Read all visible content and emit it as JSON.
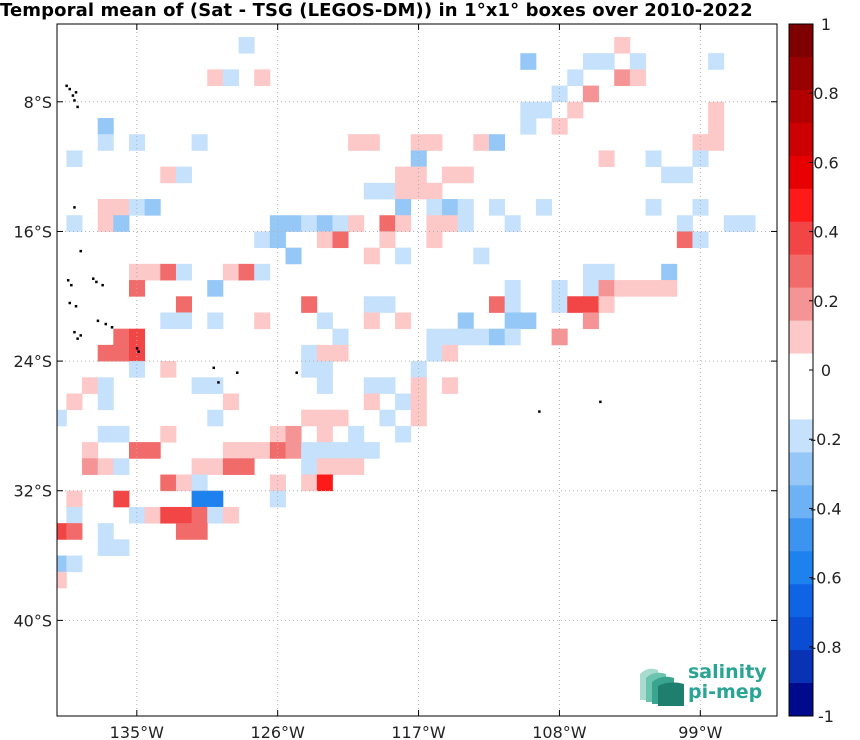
{
  "title": "Temporal mean of (Sat - TSG (LEGOS-DM)) in 1°x1° boxes over 2010-2022",
  "logo": {
    "line1": "salinity",
    "line2": "pi-mep"
  },
  "chart_data": {
    "type": "heatmap",
    "title": "Temporal mean of (Sat - TSG (LEGOS-DM)) in 1°x1° boxes over 2010-2022",
    "x_ticks": [
      {
        "value": -135,
        "label": "135°W"
      },
      {
        "value": -126,
        "label": "126°W"
      },
      {
        "value": -117,
        "label": "117°W"
      },
      {
        "value": -108,
        "label": "108°W"
      },
      {
        "value": -99,
        "label": "99°W"
      }
    ],
    "y_ticks": [
      {
        "value": -8,
        "label": "8°S"
      },
      {
        "value": -16,
        "label": "16°S"
      },
      {
        "value": -24,
        "label": "24°S"
      },
      {
        "value": -32,
        "label": "32°S"
      },
      {
        "value": -40,
        "label": "40°S"
      }
    ],
    "xlim": [
      -140.1,
      -94.1
    ],
    "ylim": [
      -45.9,
      -3.2
    ],
    "grid": true,
    "colorbar": {
      "min": -1,
      "max": 1,
      "step": 0.1,
      "tick_labels": [
        "1",
        "0.8",
        "0.6",
        "0.4",
        "0.2",
        "0",
        "-0.2",
        "-0.4",
        "-0.6",
        "-0.8",
        "-1"
      ],
      "colors": [
        "#7f0000",
        "#990000",
        "#b20000",
        "#cc0000",
        "#e60000",
        "#ff1a1a",
        "#f24646",
        "#f26b6b",
        "#f59494",
        "#fcc8c8",
        "#ffffff",
        "#ffffff",
        "#c6e1fb",
        "#96c8f7",
        "#6cb2f5",
        "#3c94f0",
        "#1e82ee",
        "#0f64e6",
        "#0a4cd2",
        "#0a32b4",
        "#000a8c"
      ]
    },
    "cells": [
      [
        -128,
        -4.5,
        "#c6e1fb"
      ],
      [
        -110,
        -5.5,
        "#96c8f7"
      ],
      [
        -104,
        -4.5,
        "#fcc8c8"
      ],
      [
        -106,
        -5.5,
        "#c6e1fb"
      ],
      [
        -105,
        -5.5,
        "#c6e1fb"
      ],
      [
        -103,
        -5.5,
        "#c6e1fb"
      ],
      [
        -98,
        -5.5,
        "#c6e1fb"
      ],
      [
        -107,
        -6.5,
        "#c6e1fb"
      ],
      [
        -104,
        -6.5,
        "#f59494"
      ],
      [
        -103,
        -6.5,
        "#fcc8c8"
      ],
      [
        -130,
        -6.5,
        "#fcc8c8"
      ],
      [
        -129,
        -6.5,
        "#c6e1fb"
      ],
      [
        -127,
        -6.5,
        "#fcc8c8"
      ],
      [
        -108,
        -7.5,
        "#c6e1fb"
      ],
      [
        -106,
        -7.5,
        "#f59494"
      ],
      [
        -109,
        -8.5,
        "#c6e1fb"
      ],
      [
        -110,
        -8.5,
        "#c6e1fb"
      ],
      [
        -107,
        -8.5,
        "#fcc8c8"
      ],
      [
        -98,
        -8.5,
        "#fcc8c8"
      ],
      [
        -137,
        -9.5,
        "#96c8f7"
      ],
      [
        -110,
        -9.5,
        "#c6e1fb"
      ],
      [
        -108,
        -9.5,
        "#fcc8c8"
      ],
      [
        -98,
        -9.5,
        "#fcc8c8"
      ],
      [
        -137,
        -10.5,
        "#c6e1fb"
      ],
      [
        -135,
        -10.5,
        "#c6e1fb"
      ],
      [
        -131,
        -10.5,
        "#c6e1fb"
      ],
      [
        -121,
        -10.5,
        "#fcc8c8"
      ],
      [
        -120,
        -10.5,
        "#fcc8c8"
      ],
      [
        -117,
        -10.5,
        "#fcc8c8"
      ],
      [
        -116,
        -10.5,
        "#fcc8c8"
      ],
      [
        -113,
        -10.5,
        "#fcc8c8"
      ],
      [
        -112,
        -10.5,
        "#96c8f7"
      ],
      [
        -99,
        -10.5,
        "#fcc8c8"
      ],
      [
        -98,
        -10.5,
        "#fcc8c8"
      ],
      [
        -139,
        -11.5,
        "#c6e1fb"
      ],
      [
        -117,
        -11.5,
        "#96c8f7"
      ],
      [
        -105,
        -11.5,
        "#fcc8c8"
      ],
      [
        -102,
        -11.5,
        "#c6e1fb"
      ],
      [
        -99,
        -11.5,
        "#c6e1fb"
      ],
      [
        -133,
        -12.5,
        "#fcc8c8"
      ],
      [
        -132,
        -12.5,
        "#c6e1fb"
      ],
      [
        -118,
        -12.5,
        "#fcc8c8"
      ],
      [
        -117,
        -12.5,
        "#fcc8c8"
      ],
      [
        -115,
        -12.5,
        "#fcc8c8"
      ],
      [
        -114,
        -12.5,
        "#fcc8c8"
      ],
      [
        -101,
        -12.5,
        "#c6e1fb"
      ],
      [
        -100,
        -12.5,
        "#c6e1fb"
      ],
      [
        -120,
        -13.5,
        "#c6e1fb"
      ],
      [
        -119,
        -13.5,
        "#c6e1fb"
      ],
      [
        -118,
        -13.5,
        "#fcc8c8"
      ],
      [
        -117,
        -13.5,
        "#fcc8c8"
      ],
      [
        -116,
        -13.5,
        "#fcc8c8"
      ],
      [
        -137,
        -14.5,
        "#fcc8c8"
      ],
      [
        -136,
        -14.5,
        "#fcc8c8"
      ],
      [
        -135,
        -14.5,
        "#c6e1fb"
      ],
      [
        -134,
        -14.5,
        "#96c8f7"
      ],
      [
        -118,
        -14.5,
        "#96c8f7"
      ],
      [
        -116,
        -14.5,
        "#c6e1fb"
      ],
      [
        -115,
        -14.5,
        "#96c8f7"
      ],
      [
        -114,
        -14.5,
        "#c6e1fb"
      ],
      [
        -112,
        -14.5,
        "#c6e1fb"
      ],
      [
        -109,
        -14.5,
        "#c6e1fb"
      ],
      [
        -102,
        -14.5,
        "#c6e1fb"
      ],
      [
        -99,
        -14.5,
        "#c6e1fb"
      ],
      [
        -139,
        -15.5,
        "#c6e1fb"
      ],
      [
        -137,
        -15.5,
        "#fcc8c8"
      ],
      [
        -136,
        -15.5,
        "#96c8f7"
      ],
      [
        -126,
        -15.5,
        "#96c8f7"
      ],
      [
        -125,
        -15.5,
        "#96c8f7"
      ],
      [
        -124,
        -15.5,
        "#c6e1fb"
      ],
      [
        -123,
        -15.5,
        "#96c8f7"
      ],
      [
        -122,
        -15.5,
        "#c6e1fb"
      ],
      [
        -121,
        -15.5,
        "#fcc8c8"
      ],
      [
        -119,
        -15.5,
        "#f26b6b"
      ],
      [
        -118,
        -15.5,
        "#fcc8c8"
      ],
      [
        -116,
        -15.5,
        "#fcc8c8"
      ],
      [
        -115,
        -15.5,
        "#fcc8c8"
      ],
      [
        -114,
        -15.5,
        "#c6e1fb"
      ],
      [
        -111,
        -15.5,
        "#c6e1fb"
      ],
      [
        -100,
        -15.5,
        "#c6e1fb"
      ],
      [
        -97,
        -15.5,
        "#c6e1fb"
      ],
      [
        -96,
        -15.5,
        "#c6e1fb"
      ],
      [
        -127,
        -16.5,
        "#c6e1fb"
      ],
      [
        -126,
        -16.5,
        "#96c8f7"
      ],
      [
        -123,
        -16.5,
        "#fcc8c8"
      ],
      [
        -122,
        -16.5,
        "#f26b6b"
      ],
      [
        -119,
        -16.5,
        "#fcc8c8"
      ],
      [
        -116,
        -16.5,
        "#fcc8c8"
      ],
      [
        -100,
        -16.5,
        "#f26b6b"
      ],
      [
        -99,
        -16.5,
        "#c6e1fb"
      ],
      [
        -125,
        -17.5,
        "#96c8f7"
      ],
      [
        -120,
        -17.5,
        "#fcc8c8"
      ],
      [
        -118,
        -17.5,
        "#c6e1fb"
      ],
      [
        -113,
        -17.5,
        "#c6e1fb"
      ],
      [
        -135,
        -18.5,
        "#fcc8c8"
      ],
      [
        -134,
        -18.5,
        "#fcc8c8"
      ],
      [
        -133,
        -18.5,
        "#f26b6b"
      ],
      [
        -132,
        -18.5,
        "#c6e1fb"
      ],
      [
        -129,
        -18.5,
        "#fcc8c8"
      ],
      [
        -128,
        -18.5,
        "#f26b6b"
      ],
      [
        -127,
        -18.5,
        "#c6e1fb"
      ],
      [
        -106,
        -18.5,
        "#c6e1fb"
      ],
      [
        -105,
        -18.5,
        "#c6e1fb"
      ],
      [
        -101,
        -18.5,
        "#96c8f7"
      ],
      [
        -130,
        -19.5,
        "#96c8f7"
      ],
      [
        -135,
        -19.5,
        "#f26b6b"
      ],
      [
        -111,
        -19.5,
        "#c6e1fb"
      ],
      [
        -108,
        -19.5,
        "#c6e1fb"
      ],
      [
        -106,
        -19.5,
        "#c6e1fb"
      ],
      [
        -105,
        -19.5,
        "#f59494"
      ],
      [
        -104,
        -19.5,
        "#fcc8c8"
      ],
      [
        -103,
        -19.5,
        "#fcc8c8"
      ],
      [
        -102,
        -19.5,
        "#fcc8c8"
      ],
      [
        -101,
        -19.5,
        "#fcc8c8"
      ],
      [
        -132,
        -20.5,
        "#f26b6b"
      ],
      [
        -124,
        -20.5,
        "#f26b6b"
      ],
      [
        -120,
        -20.5,
        "#c6e1fb"
      ],
      [
        -119,
        -20.5,
        "#c6e1fb"
      ],
      [
        -112,
        -20.5,
        "#f26b6b"
      ],
      [
        -111,
        -20.5,
        "#c6e1fb"
      ],
      [
        -108,
        -20.5,
        "#c6e1fb"
      ],
      [
        -107,
        -20.5,
        "#f24646"
      ],
      [
        -106,
        -20.5,
        "#f24646"
      ],
      [
        -105,
        -20.5,
        "#fcc8c8"
      ],
      [
        -133,
        -21.5,
        "#c6e1fb"
      ],
      [
        -132,
        -21.5,
        "#c6e1fb"
      ],
      [
        -130,
        -21.5,
        "#c6e1fb"
      ],
      [
        -127,
        -21.5,
        "#fcc8c8"
      ],
      [
        -123,
        -21.5,
        "#c6e1fb"
      ],
      [
        -120,
        -21.5,
        "#fcc8c8"
      ],
      [
        -118,
        -21.5,
        "#fcc8c8"
      ],
      [
        -114,
        -21.5,
        "#96c8f7"
      ],
      [
        -111,
        -21.5,
        "#96c8f7"
      ],
      [
        -110,
        -21.5,
        "#96c8f7"
      ],
      [
        -106,
        -21.5,
        "#f59494"
      ],
      [
        -136,
        -22.5,
        "#f26b6b"
      ],
      [
        -135,
        -22.5,
        "#f24646"
      ],
      [
        -122,
        -22.5,
        "#c6e1fb"
      ],
      [
        -116,
        -22.5,
        "#c6e1fb"
      ],
      [
        -115,
        -22.5,
        "#c6e1fb"
      ],
      [
        -114,
        -22.5,
        "#c6e1fb"
      ],
      [
        -113,
        -22.5,
        "#c6e1fb"
      ],
      [
        -112,
        -22.5,
        "#96c8f7"
      ],
      [
        -111,
        -22.5,
        "#c6e1fb"
      ],
      [
        -108,
        -22.5,
        "#f59494"
      ],
      [
        -137,
        -23.5,
        "#f26b6b"
      ],
      [
        -136,
        -23.5,
        "#f26b6b"
      ],
      [
        -135,
        -23.5,
        "#f24646"
      ],
      [
        -124,
        -23.5,
        "#c6e1fb"
      ],
      [
        -123,
        -23.5,
        "#fcc8c8"
      ],
      [
        -122,
        -23.5,
        "#fcc8c8"
      ],
      [
        -116,
        -23.5,
        "#c6e1fb"
      ],
      [
        -115,
        -23.5,
        "#fcc8c8"
      ],
      [
        -135,
        -24.5,
        "#c6e1fb"
      ],
      [
        -133,
        -24.5,
        "#fcc8c8"
      ],
      [
        -124,
        -24.5,
        "#c6e1fb"
      ],
      [
        -123,
        -24.5,
        "#c6e1fb"
      ],
      [
        -117,
        -24.5,
        "#c6e1fb"
      ],
      [
        -138,
        -25.5,
        "#fcc8c8"
      ],
      [
        -137,
        -25.5,
        "#c6e1fb"
      ],
      [
        -131,
        -25.5,
        "#c6e1fb"
      ],
      [
        -130,
        -25.5,
        "#c6e1fb"
      ],
      [
        -123,
        -25.5,
        "#c6e1fb"
      ],
      [
        -120,
        -25.5,
        "#c6e1fb"
      ],
      [
        -119,
        -25.5,
        "#c6e1fb"
      ],
      [
        -117,
        -25.5,
        "#fcc8c8"
      ],
      [
        -115,
        -25.5,
        "#fcc8c8"
      ],
      [
        -139,
        -26.5,
        "#fcc8c8"
      ],
      [
        -137,
        -26.5,
        "#c6e1fb"
      ],
      [
        -129,
        -26.5,
        "#fcc8c8"
      ],
      [
        -120,
        -26.5,
        "#fcc8c8"
      ],
      [
        -118,
        -26.5,
        "#c6e1fb"
      ],
      [
        -117,
        -26.5,
        "#fcc8c8"
      ],
      [
        -140,
        -27.5,
        "#c6e1fb"
      ],
      [
        -130,
        -27.5,
        "#c6e1fb"
      ],
      [
        -124,
        -27.5,
        "#fcc8c8"
      ],
      [
        -123,
        -27.5,
        "#fcc8c8"
      ],
      [
        -122,
        -27.5,
        "#fcc8c8"
      ],
      [
        -119,
        -27.5,
        "#c6e1fb"
      ],
      [
        -117,
        -27.5,
        "#fcc8c8"
      ],
      [
        -137,
        -28.5,
        "#c6e1fb"
      ],
      [
        -136,
        -28.5,
        "#c6e1fb"
      ],
      [
        -133,
        -28.5,
        "#fcc8c8"
      ],
      [
        -126,
        -28.5,
        "#fcc8c8"
      ],
      [
        -125,
        -28.5,
        "#f59494"
      ],
      [
        -123,
        -28.5,
        "#fcc8c8"
      ],
      [
        -121,
        -28.5,
        "#c6e1fb"
      ],
      [
        -118,
        -28.5,
        "#c6e1fb"
      ],
      [
        -138,
        -29.5,
        "#fcc8c8"
      ],
      [
        -135,
        -29.5,
        "#f26b6b"
      ],
      [
        -134,
        -29.5,
        "#f26b6b"
      ],
      [
        -129,
        -29.5,
        "#fcc8c8"
      ],
      [
        -128,
        -29.5,
        "#fcc8c8"
      ],
      [
        -127,
        -29.5,
        "#fcc8c8"
      ],
      [
        -126,
        -29.5,
        "#f26b6b"
      ],
      [
        -125,
        -29.5,
        "#f59494"
      ],
      [
        -124,
        -29.5,
        "#c6e1fb"
      ],
      [
        -123,
        -29.5,
        "#c6e1fb"
      ],
      [
        -122,
        -29.5,
        "#c6e1fb"
      ],
      [
        -121,
        -29.5,
        "#c6e1fb"
      ],
      [
        -120,
        -29.5,
        "#c6e1fb"
      ],
      [
        -138,
        -30.5,
        "#f59494"
      ],
      [
        -137,
        -30.5,
        "#fcc8c8"
      ],
      [
        -136,
        -30.5,
        "#c6e1fb"
      ],
      [
        -131,
        -30.5,
        "#fcc8c8"
      ],
      [
        -130,
        -30.5,
        "#fcc8c8"
      ],
      [
        -129,
        -30.5,
        "#f26b6b"
      ],
      [
        -128,
        -30.5,
        "#f26b6b"
      ],
      [
        -124,
        -30.5,
        "#c6e1fb"
      ],
      [
        -123,
        -30.5,
        "#fcc8c8"
      ],
      [
        -122,
        -30.5,
        "#fcc8c8"
      ],
      [
        -121,
        -30.5,
        "#fcc8c8"
      ],
      [
        -133,
        -31.5,
        "#f26b6b"
      ],
      [
        -132,
        -31.5,
        "#fcc8c8"
      ],
      [
        -131,
        -31.5,
        "#c6e1fb"
      ],
      [
        -124,
        -31.5,
        "#fcc8c8"
      ],
      [
        -123,
        -31.5,
        "#ff1a1a"
      ],
      [
        -126,
        -31.5,
        "#fcc8c8"
      ],
      [
        -139,
        -32.5,
        "#fcc8c8"
      ],
      [
        -136,
        -32.5,
        "#f24646"
      ],
      [
        -131,
        -32.5,
        "#1e82ee"
      ],
      [
        -130,
        -32.5,
        "#1e82ee"
      ],
      [
        -126,
        -32.5,
        "#c6e1fb"
      ],
      [
        -139,
        -33.5,
        "#c6e1fb"
      ],
      [
        -135,
        -33.5,
        "#c6e1fb"
      ],
      [
        -134,
        -33.5,
        "#fcc8c8"
      ],
      [
        -133,
        -33.5,
        "#f24646"
      ],
      [
        -132,
        -33.5,
        "#f24646"
      ],
      [
        -131,
        -33.5,
        "#f26b6b"
      ],
      [
        -130,
        -33.5,
        "#c6e1fb"
      ],
      [
        -129,
        -33.5,
        "#fcc8c8"
      ],
      [
        -140,
        -34.5,
        "#f24646"
      ],
      [
        -139,
        -34.5,
        "#f26b6b"
      ],
      [
        -137,
        -34.5,
        "#c6e1fb"
      ],
      [
        -132,
        -34.5,
        "#f26b6b"
      ],
      [
        -131,
        -34.5,
        "#f26b6b"
      ],
      [
        -137,
        -35.5,
        "#c6e1fb"
      ],
      [
        -136,
        -35.5,
        "#c6e1fb"
      ],
      [
        -140,
        -36.5,
        "#96c8f7"
      ],
      [
        -139,
        -36.5,
        "#c6e1fb"
      ],
      [
        -140,
        -37.5,
        "#fcc8c8"
      ]
    ],
    "islands": [
      [
        -139.5,
        -7.0
      ],
      [
        -139.3,
        -7.2
      ],
      [
        -139.1,
        -7.6
      ],
      [
        -139.0,
        -7.9
      ],
      [
        -138.8,
        -8.3
      ],
      [
        -138.9,
        -7.4
      ],
      [
        -139.0,
        -14.5
      ],
      [
        -138.6,
        -17.2
      ],
      [
        -137.8,
        -18.9
      ],
      [
        -137.6,
        -19.1
      ],
      [
        -137.2,
        -19.3
      ],
      [
        -139.4,
        -19.0
      ],
      [
        -139.2,
        -19.3
      ],
      [
        -139.3,
        -20.4
      ],
      [
        -138.9,
        -20.6
      ],
      [
        -137.5,
        -21.5
      ],
      [
        -137.0,
        -21.7
      ],
      [
        -136.6,
        -21.9
      ],
      [
        -139.0,
        -22.2
      ],
      [
        -138.6,
        -22.4
      ],
      [
        -138.8,
        -22.6
      ],
      [
        -135.0,
        -23.2
      ],
      [
        -134.9,
        -23.4
      ],
      [
        -130.1,
        -24.4
      ],
      [
        -129.8,
        -25.3
      ],
      [
        -128.6,
        -24.7
      ],
      [
        -109.3,
        -27.1
      ],
      [
        -105.4,
        -26.5
      ],
      [
        -124.8,
        -24.7
      ]
    ]
  }
}
